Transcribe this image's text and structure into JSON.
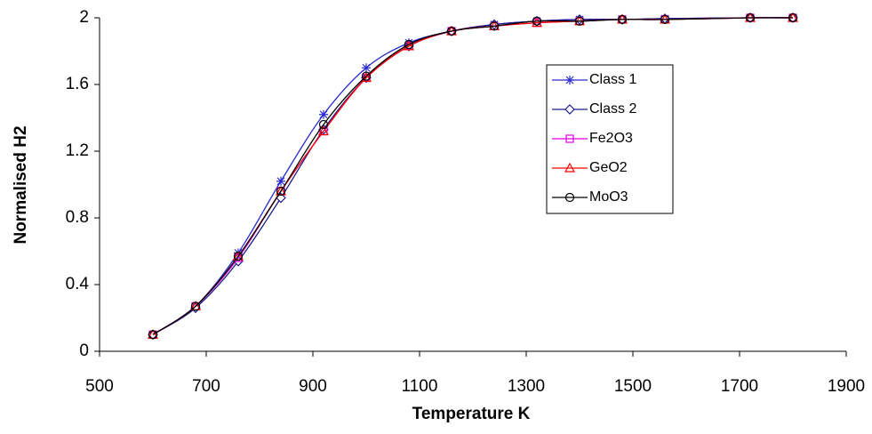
{
  "chart_data": {
    "type": "line",
    "x_label": "Temperature K",
    "y_label": "Normalised H2",
    "x": [
      600,
      680,
      760,
      840,
      920,
      1000,
      1080,
      1160,
      1240,
      1320,
      1400,
      1480,
      1560,
      1720,
      1800
    ],
    "series": [
      {
        "name": "Class 1",
        "color": "#2b2bd0",
        "marker": "asterisk",
        "values": [
          0.1,
          0.27,
          0.59,
          1.02,
          1.42,
          1.7,
          1.85,
          1.92,
          1.96,
          1.98,
          1.99,
          1.99,
          1.995,
          2.0,
          2.0
        ]
      },
      {
        "name": "Class 2",
        "color": "#1a1a8c",
        "marker": "diamond",
        "values": [
          0.1,
          0.26,
          0.54,
          0.92,
          1.33,
          1.64,
          1.83,
          1.92,
          1.96,
          1.98,
          1.99,
          1.99,
          1.995,
          2.0,
          2.0
        ]
      },
      {
        "name": "Fe2O3",
        "color": "#e000e0",
        "marker": "square",
        "values": [
          0.1,
          0.27,
          0.56,
          0.96,
          1.32,
          1.64,
          1.83,
          1.92,
          1.95,
          1.97,
          1.98,
          1.99,
          1.99,
          2.0,
          2.0
        ]
      },
      {
        "name": "GeO2",
        "color": "#ff0000",
        "marker": "triangle",
        "values": [
          0.1,
          0.27,
          0.57,
          0.96,
          1.32,
          1.64,
          1.83,
          1.92,
          1.95,
          1.97,
          1.98,
          1.99,
          1.99,
          2.0,
          2.0
        ]
      },
      {
        "name": "MoO3",
        "color": "#000000",
        "marker": "circle",
        "values": [
          0.1,
          0.27,
          0.57,
          0.96,
          1.36,
          1.65,
          1.84,
          1.92,
          1.95,
          1.98,
          1.98,
          1.99,
          1.99,
          2.0,
          2.0
        ]
      }
    ],
    "xlim": [
      500,
      1900
    ],
    "xticks": [
      500,
      700,
      900,
      1100,
      1300,
      1500,
      1700,
      1900
    ],
    "ylim": [
      0,
      2
    ],
    "yticks": [
      0,
      0.4,
      0.8,
      1.2,
      1.6,
      2
    ],
    "grid": false,
    "legend": "right"
  }
}
